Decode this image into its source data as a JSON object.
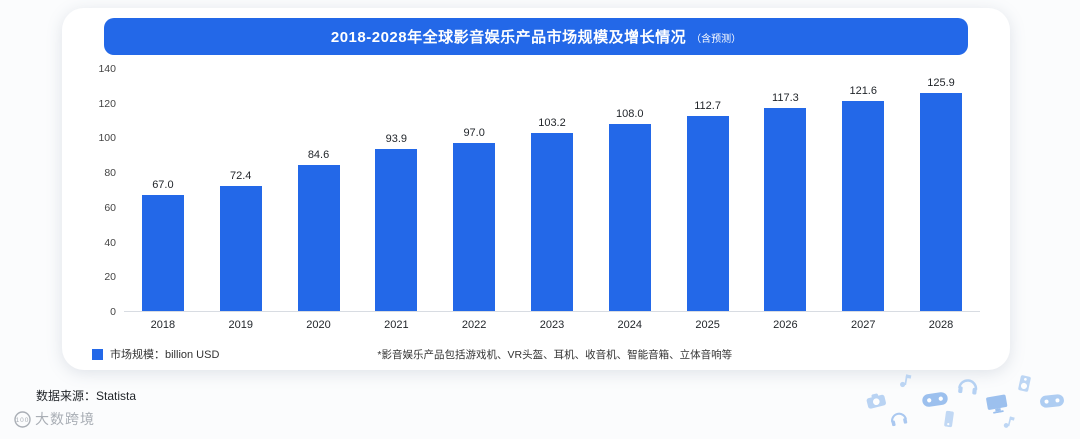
{
  "header": {
    "title": "2018-2028年全球影音娱乐产品市场规模及增长情况",
    "subtitle": "（含预测）"
  },
  "chart_data": {
    "type": "bar",
    "title": "2018-2028年全球影音娱乐产品市场规模及增长情况（含预测）",
    "categories": [
      "2018",
      "2019",
      "2020",
      "2021",
      "2022",
      "2023",
      "2024",
      "2025",
      "2026",
      "2027",
      "2028"
    ],
    "values": [
      67.0,
      72.4,
      84.6,
      93.9,
      97.0,
      103.2,
      108.0,
      112.7,
      117.3,
      121.6,
      125.9
    ],
    "value_labels": [
      "67.0",
      "72.4",
      "84.6",
      "93.9",
      "97.0",
      "103.2",
      "108.0",
      "112.7",
      "117.3",
      "121.6",
      "125.9"
    ],
    "ylim": [
      0,
      140
    ],
    "yticks": [
      0,
      20,
      40,
      60,
      80,
      100,
      120,
      140
    ],
    "xlabel": "",
    "ylabel": "",
    "grid": false,
    "legend_position": "bottom-left",
    "legend": "市场规模：billion USD",
    "bar_color": "#2368e8"
  },
  "footnote": "*影音娱乐产品包括游戏机、VR头盔、耳机、收音机、智能音箱、立体音响等",
  "source": "数据来源：Statista",
  "watermark": "大数跨境",
  "colors": {
    "accent_blue": "#2368e8",
    "deco_blue": "#aecdf2"
  }
}
